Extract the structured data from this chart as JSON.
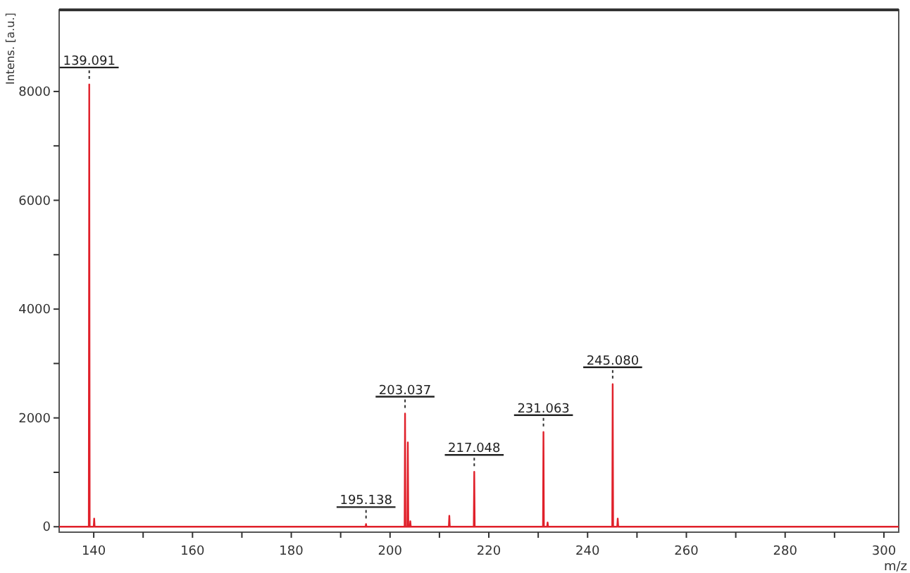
{
  "chart_data": {
    "type": "line",
    "xlabel": "m/z",
    "ylabel": "Intens. [a.u.]",
    "xlim": [
      133,
      303
    ],
    "ylim": [
      -100,
      9500
    ],
    "xticks": [
      140,
      {
        "value": 150,
        "label": null
      },
      160,
      {
        "value": 170,
        "label": null
      },
      180,
      {
        "value": 190,
        "label": null
      },
      200,
      {
        "value": 210,
        "label": null
      },
      220,
      {
        "value": 230,
        "label": null
      },
      240,
      {
        "value": 250,
        "label": null
      },
      260,
      {
        "value": 270,
        "label": null
      },
      280,
      {
        "value": 290,
        "label": null
      },
      300
    ],
    "yticks": [
      0,
      {
        "value": 1000,
        "label": null
      },
      2000,
      {
        "value": 3000,
        "label": null
      },
      4000,
      {
        "value": 5000,
        "label": null
      },
      6000,
      {
        "value": 7000,
        "label": null
      },
      8000
    ],
    "grid": false,
    "marker": "none",
    "line_style": "solid",
    "series": [
      {
        "color": "#e0202a",
        "x": [
          133,
          139.0,
          139.091,
          139.18,
          140.0,
          140.09,
          140.18,
          195.05,
          195.138,
          195.22,
          202.95,
          203.037,
          203.12,
          203.5,
          203.6,
          203.7,
          204.0,
          204.1,
          204.2,
          211.9,
          212.0,
          212.1,
          216.95,
          217.048,
          217.14,
          230.97,
          231.063,
          231.15,
          231.8,
          231.9,
          232.0,
          244.99,
          245.08,
          245.17,
          246.0,
          246.1,
          246.2,
          303
        ],
        "values": [
          0,
          0,
          8130,
          0,
          0,
          150,
          0,
          0,
          50,
          0,
          0,
          2080,
          0,
          0,
          1550,
          0,
          0,
          100,
          0,
          0,
          200,
          0,
          0,
          1010,
          0,
          0,
          1740,
          0,
          0,
          80,
          0,
          0,
          2620,
          0,
          0,
          150,
          0,
          0
        ]
      }
    ],
    "annotations": [
      {
        "text": "139.091",
        "x": 139.091,
        "y": 8130
      },
      {
        "text": "195.138",
        "x": 195.138,
        "y": 50
      },
      {
        "text": "203.037",
        "x": 203.037,
        "y": 2080
      },
      {
        "text": "217.048",
        "x": 217.048,
        "y": 1010
      },
      {
        "text": "231.063",
        "x": 231.063,
        "y": 1740
      },
      {
        "text": "245.080",
        "x": 245.08,
        "y": 2620
      }
    ]
  }
}
